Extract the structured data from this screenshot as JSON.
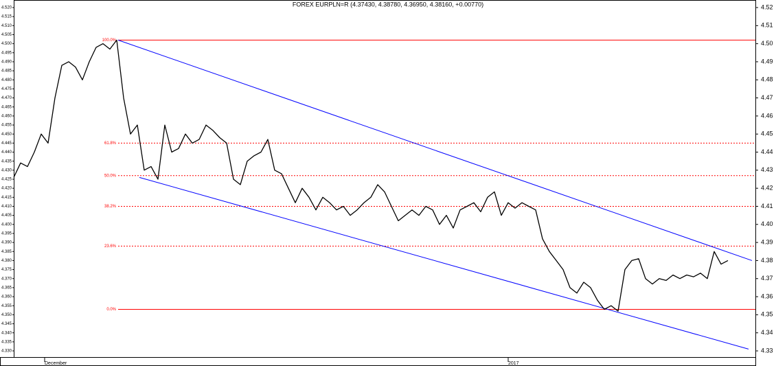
{
  "chart_data": {
    "type": "line",
    "title": "FOREX EURPLN=R (4.37430, 4.38780, 4.36950, 4.38160, +0.00770)",
    "series": [
      {
        "name": "EURPLN=R",
        "color": "#000000",
        "values": [
          4.426,
          4.434,
          4.432,
          4.44,
          4.45,
          4.445,
          4.47,
          4.488,
          4.49,
          4.487,
          4.48,
          4.49,
          4.498,
          4.5,
          4.497,
          4.502,
          4.47,
          4.45,
          4.455,
          4.43,
          4.432,
          4.425,
          4.455,
          4.44,
          4.442,
          4.45,
          4.445,
          4.447,
          4.455,
          4.452,
          4.448,
          4.445,
          4.425,
          4.422,
          4.435,
          4.438,
          4.44,
          4.447,
          4.43,
          4.428,
          4.42,
          4.412,
          4.42,
          4.415,
          4.408,
          4.415,
          4.412,
          4.408,
          4.41,
          4.405,
          4.408,
          4.412,
          4.415,
          4.422,
          4.418,
          4.41,
          4.402,
          4.405,
          4.408,
          4.405,
          4.41,
          4.408,
          4.4,
          4.405,
          4.398,
          4.408,
          4.41,
          4.412,
          4.407,
          4.415,
          4.418,
          4.405,
          4.412,
          4.409,
          4.412,
          4.41,
          4.408,
          4.392,
          4.385,
          4.38,
          4.375,
          4.365,
          4.362,
          4.368,
          4.365,
          4.358,
          4.353,
          4.355,
          4.352,
          4.375,
          4.38,
          4.381,
          4.37,
          4.367,
          4.37,
          4.369,
          4.372,
          4.37,
          4.372,
          4.371,
          4.373,
          4.37,
          4.385,
          4.378,
          4.38
        ]
      }
    ],
    "xlim": [
      0,
      108
    ],
    "xticks": [
      {
        "value": 4.5,
        "label": "December"
      },
      {
        "value": 72,
        "label": "2017"
      }
    ],
    "ylim": [
      4.33,
      4.52
    ],
    "yticks": [
      {
        "value": 4.33,
        "label": "4.330"
      },
      {
        "value": 4.335,
        "label": "4.335"
      },
      {
        "value": 4.34,
        "label": "4.340"
      },
      {
        "value": 4.345,
        "label": "4.345"
      },
      {
        "value": 4.35,
        "label": "4.350"
      },
      {
        "value": 4.355,
        "label": "4.355"
      },
      {
        "value": 4.36,
        "label": "4.360"
      },
      {
        "value": 4.365,
        "label": "4.365"
      },
      {
        "value": 4.37,
        "label": "4.370"
      },
      {
        "value": 4.375,
        "label": "4.375"
      },
      {
        "value": 4.38,
        "label": "4.380"
      },
      {
        "value": 4.385,
        "label": "4.385"
      },
      {
        "value": 4.39,
        "label": "4.390"
      },
      {
        "value": 4.395,
        "label": "4.395"
      },
      {
        "value": 4.4,
        "label": "4.400"
      },
      {
        "value": 4.405,
        "label": "4.405"
      },
      {
        "value": 4.41,
        "label": "4.410"
      },
      {
        "value": 4.415,
        "label": "4.415"
      },
      {
        "value": 4.42,
        "label": "4.420"
      },
      {
        "value": 4.425,
        "label": "4.425"
      },
      {
        "value": 4.43,
        "label": "4.430"
      },
      {
        "value": 4.435,
        "label": "4.435"
      },
      {
        "value": 4.44,
        "label": "4.440"
      },
      {
        "value": 4.445,
        "label": "4.445"
      },
      {
        "value": 4.45,
        "label": "4.450"
      },
      {
        "value": 4.455,
        "label": "4.455"
      },
      {
        "value": 4.46,
        "label": "4.460"
      },
      {
        "value": 4.465,
        "label": "4.465"
      },
      {
        "value": 4.47,
        "label": "4.470"
      },
      {
        "value": 4.475,
        "label": "4.475"
      },
      {
        "value": 4.48,
        "label": "4.480"
      },
      {
        "value": 4.485,
        "label": "4.485"
      },
      {
        "value": 4.49,
        "label": "4.490"
      },
      {
        "value": 4.495,
        "label": "4.495"
      },
      {
        "value": 4.5,
        "label": "4.500"
      },
      {
        "value": 4.505,
        "label": "4.505"
      },
      {
        "value": 4.51,
        "label": "4.510"
      },
      {
        "value": 4.515,
        "label": "4.515"
      },
      {
        "value": 4.52,
        "label": "4.520"
      }
    ],
    "y2lim": [
      4.33,
      4.52
    ],
    "y2ticks": [
      {
        "value": 4.33,
        "label": "4.33"
      },
      {
        "value": 4.34,
        "label": "4.34"
      },
      {
        "value": 4.35,
        "label": "4.35"
      },
      {
        "value": 4.36,
        "label": "4.36"
      },
      {
        "value": 4.37,
        "label": "4.37"
      },
      {
        "value": 4.38,
        "label": "4.38"
      },
      {
        "value": 4.39,
        "label": "4.39"
      },
      {
        "value": 4.4,
        "label": "4.40"
      },
      {
        "value": 4.41,
        "label": "4.41"
      },
      {
        "value": 4.42,
        "label": "4.42"
      },
      {
        "value": 4.43,
        "label": "4.43"
      },
      {
        "value": 4.44,
        "label": "4.44"
      },
      {
        "value": 4.45,
        "label": "4.45"
      },
      {
        "value": 4.46,
        "label": "4.46"
      },
      {
        "value": 4.47,
        "label": "4.47"
      },
      {
        "value": 4.48,
        "label": "4.48"
      },
      {
        "value": 4.49,
        "label": "4.49"
      },
      {
        "value": 4.5,
        "label": "4.50"
      },
      {
        "value": 4.51,
        "label": "4.51"
      },
      {
        "value": 4.52,
        "label": "4.52"
      }
    ],
    "fib_color": "#ff0000",
    "fib_x": [
      15.2,
      108
    ],
    "fib_levels": [
      {
        "label": "100.0%",
        "value": 4.502
      },
      {
        "label": "61.8%",
        "value": 4.445
      },
      {
        "label": "50.0%",
        "value": 4.427
      },
      {
        "label": "38.2%",
        "value": 4.41
      },
      {
        "label": "23.6%",
        "value": 4.388
      },
      {
        "label": "0.0%",
        "value": 4.353
      }
    ],
    "channel_color": "#0000ff",
    "channel": [
      {
        "x": [
          15.2,
          107.5
        ],
        "y": [
          4.502,
          4.38
        ]
      },
      {
        "x": [
          18.3,
          107
        ],
        "y": [
          4.426,
          4.331
        ]
      }
    ]
  }
}
